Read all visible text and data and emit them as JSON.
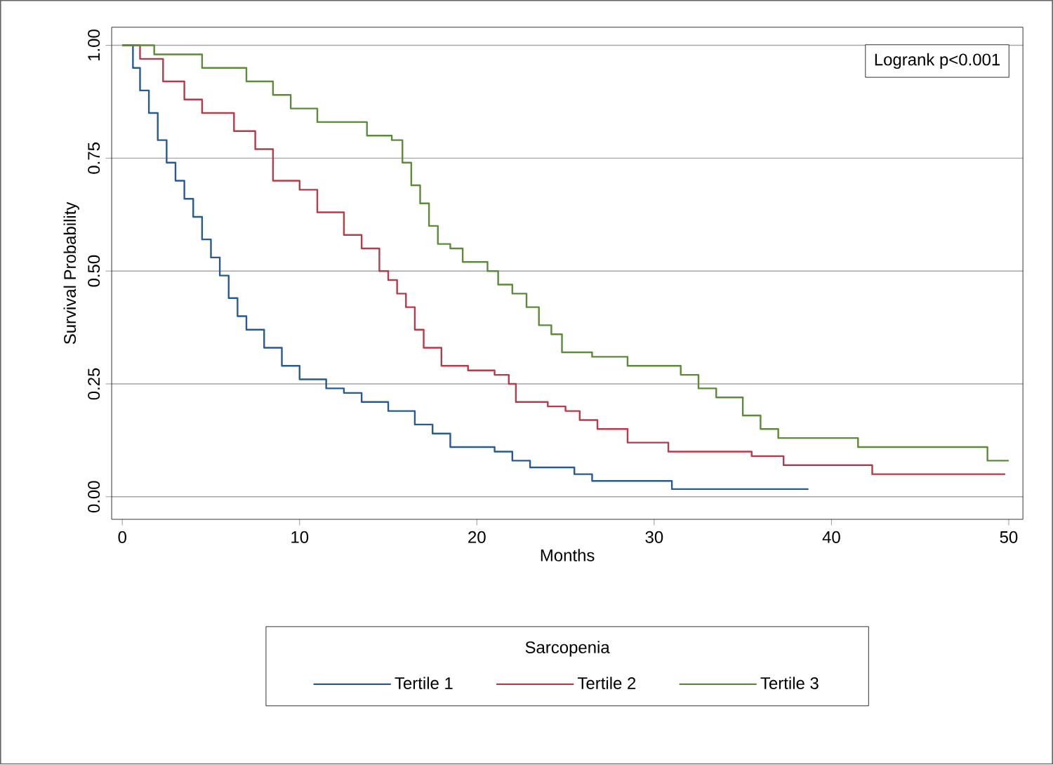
{
  "chart_data": {
    "type": "step",
    "xlabel": "Months",
    "ylabel": "Survival Probability",
    "legend_title": "Sarcopenia",
    "legend": "bottom",
    "grid": "y",
    "xlim": [
      -0.6,
      50.8
    ],
    "ylim": [
      -0.05,
      1.04
    ],
    "xticks": [
      0,
      10,
      20,
      30,
      40,
      50
    ],
    "yticks": [
      {
        "value": 0,
        "label": "0.00"
      },
      {
        "value": 0.25,
        "label": "0.25"
      },
      {
        "value": 0.5,
        "label": "0.50"
      },
      {
        "value": 0.75,
        "label": "0.75"
      },
      {
        "value": 1,
        "label": "1.00"
      }
    ],
    "annotations": [
      "Logrank p<0.001"
    ],
    "series": [
      {
        "name": "Tertile 1",
        "color": "#2b5b8c",
        "x": [
          0,
          0.6,
          1,
          1.5,
          2,
          2.5,
          3,
          3.5,
          4,
          4.5,
          5,
          5.5,
          6,
          6.5,
          7,
          8,
          9,
          10,
          11.5,
          12.5,
          13.5,
          15,
          16.5,
          17.5,
          18.5,
          21,
          22,
          23,
          25.5,
          26.5,
          31,
          38.7
        ],
        "values": [
          1,
          0.95,
          0.9,
          0.85,
          0.79,
          0.74,
          0.7,
          0.66,
          0.62,
          0.57,
          0.53,
          0.49,
          0.44,
          0.4,
          0.37,
          0.33,
          0.29,
          0.26,
          0.24,
          0.23,
          0.21,
          0.19,
          0.16,
          0.14,
          0.11,
          0.1,
          0.08,
          0.065,
          0.05,
          0.035,
          0.017,
          0.017
        ]
      },
      {
        "name": "Tertile 2",
        "color": "#b43c4c",
        "x": [
          0,
          1,
          2.3,
          3.5,
          4.5,
          6.3,
          7.5,
          8.5,
          10,
          11,
          12.5,
          13.5,
          14.5,
          15,
          15.5,
          16,
          16.5,
          17,
          18,
          19.5,
          21,
          21.8,
          22.2,
          24,
          25,
          25.8,
          26.8,
          28.5,
          30.8,
          35.5,
          37.3,
          42.3,
          49.8
        ],
        "values": [
          1,
          0.97,
          0.92,
          0.88,
          0.85,
          0.81,
          0.77,
          0.7,
          0.68,
          0.63,
          0.58,
          0.55,
          0.5,
          0.48,
          0.45,
          0.42,
          0.37,
          0.33,
          0.29,
          0.28,
          0.27,
          0.25,
          0.21,
          0.2,
          0.19,
          0.17,
          0.15,
          0.12,
          0.1,
          0.09,
          0.07,
          0.05,
          0.05
        ]
      },
      {
        "name": "Tertile 3",
        "color": "#5e8a3c",
        "x": [
          0,
          1.8,
          4.5,
          7,
          8.5,
          9.5,
          11,
          13.8,
          15.2,
          15.8,
          16.3,
          16.8,
          17.3,
          17.8,
          18.5,
          19.2,
          20.6,
          21.2,
          22,
          22.8,
          23.5,
          24.2,
          24.8,
          26.5,
          28.5,
          31.5,
          32.5,
          33.5,
          35,
          36,
          37,
          41.5,
          48.8,
          50
        ],
        "values": [
          1,
          0.98,
          0.95,
          0.92,
          0.89,
          0.86,
          0.83,
          0.8,
          0.79,
          0.74,
          0.69,
          0.65,
          0.6,
          0.56,
          0.55,
          0.52,
          0.5,
          0.47,
          0.45,
          0.42,
          0.38,
          0.36,
          0.32,
          0.31,
          0.29,
          0.27,
          0.24,
          0.22,
          0.18,
          0.15,
          0.13,
          0.11,
          0.08,
          0.08
        ]
      }
    ]
  }
}
